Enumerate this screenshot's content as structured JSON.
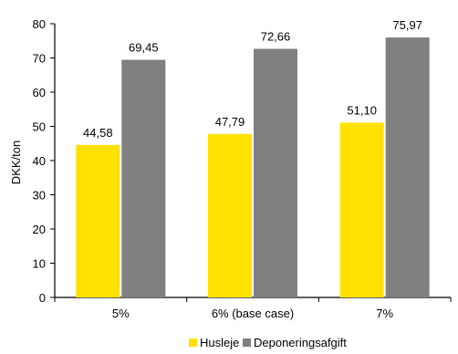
{
  "chart_data": {
    "type": "bar",
    "title": "",
    "xlabel": "",
    "ylabel": "DKK/ton",
    "ylim": [
      0,
      80
    ],
    "yticks": [
      0,
      10,
      20,
      30,
      40,
      50,
      60,
      70,
      80
    ],
    "categories": [
      "5%",
      "6% (base case)",
      "7%"
    ],
    "series": [
      {
        "name": "Husleje",
        "color": "#ffe100",
        "values": [
          44.58,
          47.79,
          51.1
        ],
        "labels": [
          "44,58",
          "47,79",
          "51,10"
        ]
      },
      {
        "name": "Deponeringsafgift",
        "color": "#808080",
        "values": [
          69.45,
          72.66,
          75.97
        ],
        "labels": [
          "69,45",
          "72,66",
          "75,97"
        ]
      }
    ],
    "grid": false,
    "legend_position": "bottom"
  }
}
